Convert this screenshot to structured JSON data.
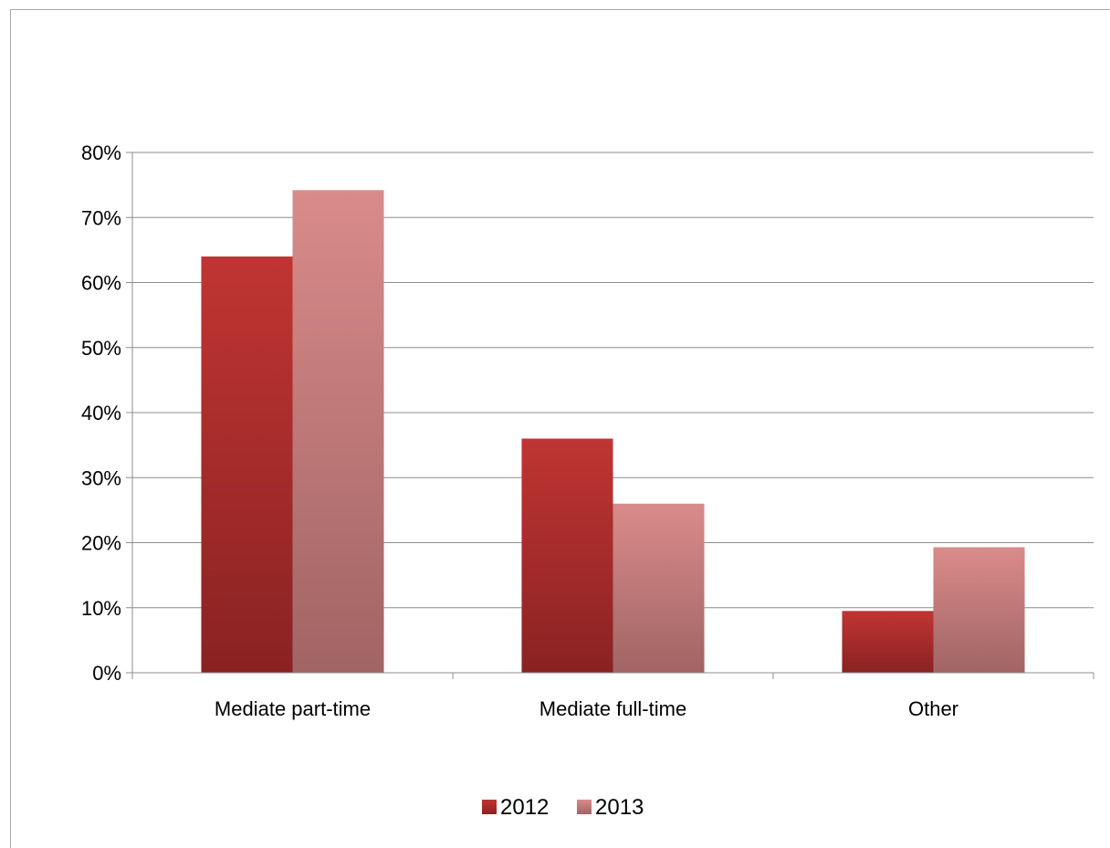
{
  "chart_data": {
    "type": "bar",
    "title": "",
    "xlabel": "",
    "ylabel": "",
    "categories": [
      "Mediate part-time",
      "Mediate full-time",
      "Other"
    ],
    "series": [
      {
        "name": "2012",
        "values": [
          64,
          36,
          9.5
        ],
        "color": "#a82a2a"
      },
      {
        "name": "2013",
        "values": [
          74.2,
          26,
          19.3
        ],
        "color": "#c77a7a"
      }
    ],
    "ylim": [
      0,
      80
    ],
    "yticks": [
      0,
      10,
      20,
      30,
      40,
      50,
      60,
      70,
      80
    ],
    "ytick_labels": [
      "0%",
      "10%",
      "20%",
      "30%",
      "40%",
      "50%",
      "60%",
      "70%",
      "80%"
    ],
    "grid": true,
    "legend_position": "bottom"
  }
}
